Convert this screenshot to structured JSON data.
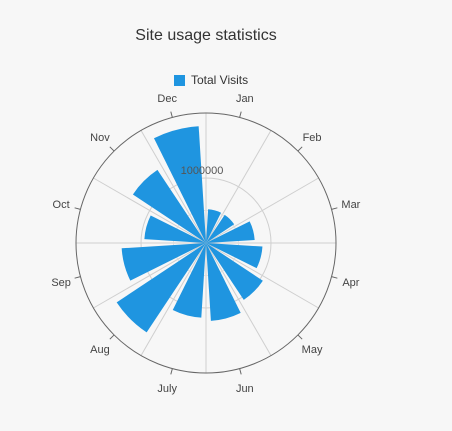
{
  "chart_data": {
    "type": "polar-bar",
    "title": "Site usage statistics",
    "series": [
      {
        "name": "Total Visits",
        "color": "#1f95e0",
        "values": [
          520000,
          520000,
          750000,
          870000,
          1050000,
          1200000,
          1150000,
          1650000,
          1300000,
          950000,
          1350000,
          1800000
        ]
      }
    ],
    "categories": [
      "Jan",
      "Feb",
      "Mar",
      "Apr",
      "May",
      "Jun",
      "July",
      "Aug",
      "Sep",
      "Oct",
      "Nov",
      "Dec"
    ],
    "radial_axis": {
      "min": 0,
      "max": 2000000,
      "tick_labels": [
        "1000000"
      ],
      "ticks": [
        1000000
      ]
    },
    "grid": true,
    "legend_position": "top"
  }
}
